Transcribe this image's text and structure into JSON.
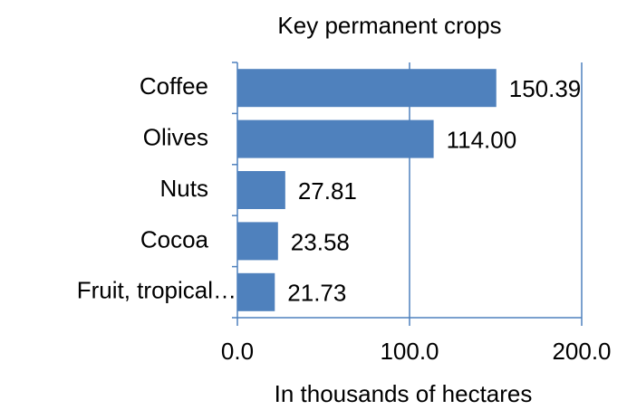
{
  "chart_data": {
    "type": "bar",
    "orientation": "horizontal",
    "title": "Key permanent crops",
    "x_label": "In thousands of hectares",
    "categories": [
      "Coffee",
      "Olives",
      "Nuts",
      "Cocoa",
      "Fruit, tropical…"
    ],
    "values": [
      150.39,
      114.0,
      27.81,
      23.58,
      21.73
    ],
    "value_labels": [
      "150.39",
      "114.00",
      "27.81",
      "23.58",
      "21.73"
    ],
    "color": "#4f81bd",
    "xlim": [
      0,
      200
    ],
    "xticks": [
      {
        "value": 0,
        "label": "0.0"
      },
      {
        "value": 100,
        "label": "100.0"
      },
      {
        "value": 200,
        "label": "200.0"
      }
    ],
    "grid": true
  }
}
